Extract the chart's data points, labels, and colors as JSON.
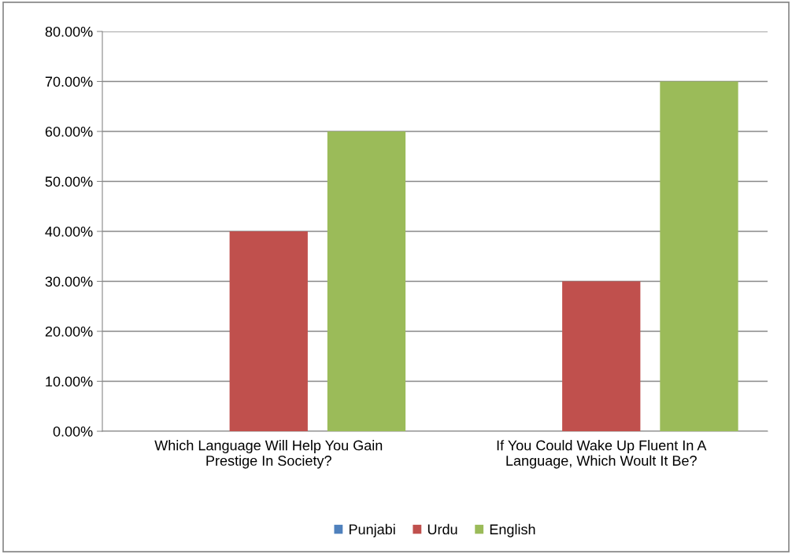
{
  "chart_data": {
    "type": "bar",
    "categories": [
      "Which Language Will Help You Gain\nPrestige In Society?",
      "If You Could Wake Up Fluent In A\nLanguage, Which Woult It Be?"
    ],
    "series": [
      {
        "name": "Punjabi",
        "color": "#4f81bd",
        "values": [
          0,
          0
        ]
      },
      {
        "name": "Urdu",
        "color": "#c0504d",
        "values": [
          40,
          30
        ]
      },
      {
        "name": "English",
        "color": "#9bbb59",
        "values": [
          60,
          70
        ]
      }
    ],
    "ylim": [
      0,
      80
    ],
    "yticks": [
      {
        "value": 0,
        "label": "0.00%"
      },
      {
        "value": 10,
        "label": "10.00%"
      },
      {
        "value": 20,
        "label": "20.00%"
      },
      {
        "value": 30,
        "label": "30.00%"
      },
      {
        "value": 40,
        "label": "40.00%"
      },
      {
        "value": 50,
        "label": "50.00%"
      },
      {
        "value": 60,
        "label": "60.00%"
      },
      {
        "value": 70,
        "label": "70.00%"
      },
      {
        "value": 80,
        "label": "80.00%"
      }
    ],
    "grid": "y",
    "legend": "bottom"
  }
}
